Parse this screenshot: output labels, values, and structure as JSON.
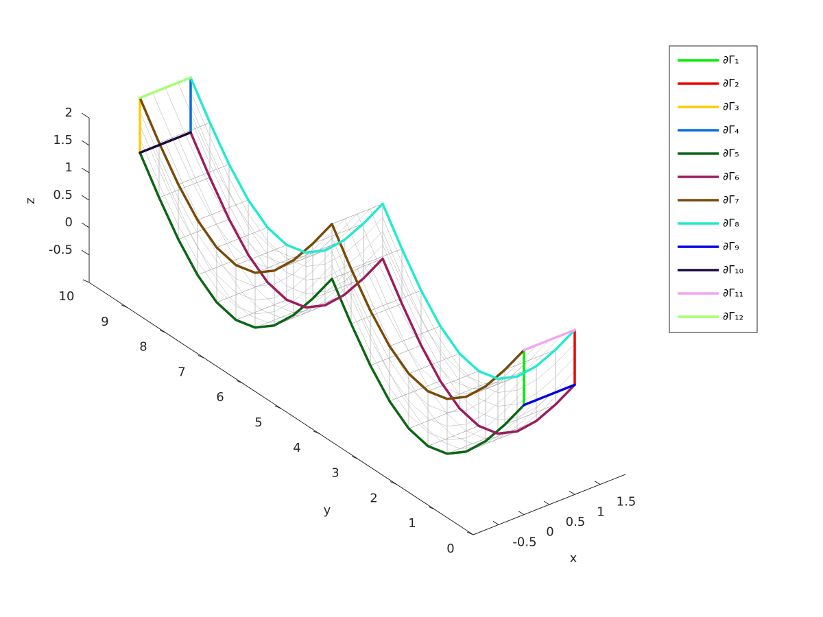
{
  "chart_data": {
    "type": "line3d",
    "xlabel": "x",
    "ylabel": "y",
    "zlabel": "z",
    "xlim": [
      -1,
      2
    ],
    "ylim": [
      0,
      10
    ],
    "zlim": [
      -1,
      2
    ],
    "xticks": [
      -0.5,
      0,
      0.5,
      1,
      1.5
    ],
    "yticks": [
      0,
      1,
      2,
      3,
      4,
      5,
      6,
      7,
      8,
      9,
      10
    ],
    "zticks": [
      -0.5,
      0,
      0.5,
      1,
      1.5,
      2
    ],
    "legend": "upper right",
    "mesh": true,
    "series": [
      {
        "name": "∂Γ₁",
        "color": "#00ee00",
        "x": [
          0,
          0
        ],
        "y": [
          0,
          0
        ],
        "z": [
          1,
          2
        ]
      },
      {
        "name": "∂Γ₂",
        "color": "#ee0000",
        "x": [
          1,
          1
        ],
        "y": [
          0,
          0
        ],
        "z": [
          1,
          2
        ]
      },
      {
        "name": "∂Γ₃",
        "color": "#ffcc00",
        "x": [
          0,
          0
        ],
        "y": [
          10,
          10
        ],
        "z": [
          1,
          2
        ]
      },
      {
        "name": "∂Γ₄",
        "color": "#0a6ed8",
        "x": [
          1,
          1
        ],
        "y": [
          10,
          10
        ],
        "z": [
          1,
          2
        ]
      },
      {
        "name": "∂Γ₅",
        "color": "#0a6614",
        "x": [
          0,
          0,
          0,
          0,
          0,
          0,
          0,
          0,
          0,
          0,
          0,
          0,
          0,
          0,
          0,
          0,
          0,
          0,
          0,
          0,
          0
        ],
        "y": [
          0,
          0.5,
          1,
          1.5,
          2,
          2.5,
          3,
          3.5,
          4,
          4.5,
          5,
          5.5,
          6,
          6.5,
          7,
          7.5,
          8,
          8.5,
          9,
          9.5,
          10
        ],
        "z": [
          1,
          0.41,
          -0.12,
          -0.54,
          -0.81,
          -0.9,
          -0.81,
          -0.54,
          -0.12,
          0.41,
          1,
          0.41,
          -0.12,
          -0.54,
          -0.81,
          -0.9,
          -0.81,
          -0.54,
          -0.12,
          0.41,
          1
        ]
      },
      {
        "name": "∂Γ₆",
        "color": "#9c1c5c",
        "x": [
          1,
          1,
          1,
          1,
          1,
          1,
          1,
          1,
          1,
          1,
          1,
          1,
          1,
          1,
          1,
          1,
          1,
          1,
          1,
          1,
          1
        ],
        "y": [
          0,
          0.5,
          1,
          1.5,
          2,
          2.5,
          3,
          3.5,
          4,
          4.5,
          5,
          5.5,
          6,
          6.5,
          7,
          7.5,
          8,
          8.5,
          9,
          9.5,
          10
        ],
        "z": [
          1,
          0.41,
          -0.12,
          -0.54,
          -0.81,
          -0.9,
          -0.81,
          -0.54,
          -0.12,
          0.41,
          1,
          0.41,
          -0.12,
          -0.54,
          -0.81,
          -0.9,
          -0.81,
          -0.54,
          -0.12,
          0.41,
          1
        ]
      },
      {
        "name": "∂Γ₇",
        "color": "#7a4a08",
        "x": [
          0,
          0,
          0,
          0,
          0,
          0,
          0,
          0,
          0,
          0,
          0,
          0,
          0,
          0,
          0,
          0,
          0,
          0,
          0,
          0,
          0
        ],
        "y": [
          0,
          0.5,
          1,
          1.5,
          2,
          2.5,
          3,
          3.5,
          4,
          4.5,
          5,
          5.5,
          6,
          6.5,
          7,
          7.5,
          8,
          8.5,
          9,
          9.5,
          10
        ],
        "z": [
          2,
          1.41,
          0.88,
          0.46,
          0.19,
          0.1,
          0.19,
          0.46,
          0.88,
          1.41,
          2,
          1.41,
          0.88,
          0.46,
          0.19,
          0.1,
          0.19,
          0.46,
          0.88,
          1.41,
          2
        ]
      },
      {
        "name": "∂Γ₈",
        "color": "#22ead0",
        "x": [
          1,
          1,
          1,
          1,
          1,
          1,
          1,
          1,
          1,
          1,
          1,
          1,
          1,
          1,
          1,
          1,
          1,
          1,
          1,
          1,
          1
        ],
        "y": [
          0,
          0.5,
          1,
          1.5,
          2,
          2.5,
          3,
          3.5,
          4,
          4.5,
          5,
          5.5,
          6,
          6.5,
          7,
          7.5,
          8,
          8.5,
          9,
          9.5,
          10
        ],
        "z": [
          2,
          1.41,
          0.88,
          0.46,
          0.19,
          0.1,
          0.19,
          0.46,
          0.88,
          1.41,
          2,
          1.41,
          0.88,
          0.46,
          0.19,
          0.1,
          0.19,
          0.46,
          0.88,
          1.41,
          2
        ]
      },
      {
        "name": "∂Γ₉",
        "color": "#0000e6",
        "x": [
          0,
          1
        ],
        "y": [
          0,
          0
        ],
        "z": [
          1,
          1
        ]
      },
      {
        "name": "∂Γ₁₀",
        "color": "#1a0a40",
        "x": [
          0,
          1
        ],
        "y": [
          10,
          10
        ],
        "z": [
          1,
          1
        ]
      },
      {
        "name": "∂Γ₁₁",
        "color": "#f4a4f4",
        "x": [
          0,
          1
        ],
        "y": [
          0,
          0
        ],
        "z": [
          2,
          2
        ]
      },
      {
        "name": "∂Γ₁₂",
        "color": "#a4ff70",
        "x": [
          0,
          1
        ],
        "y": [
          10,
          10
        ],
        "z": [
          2,
          2
        ]
      }
    ]
  }
}
